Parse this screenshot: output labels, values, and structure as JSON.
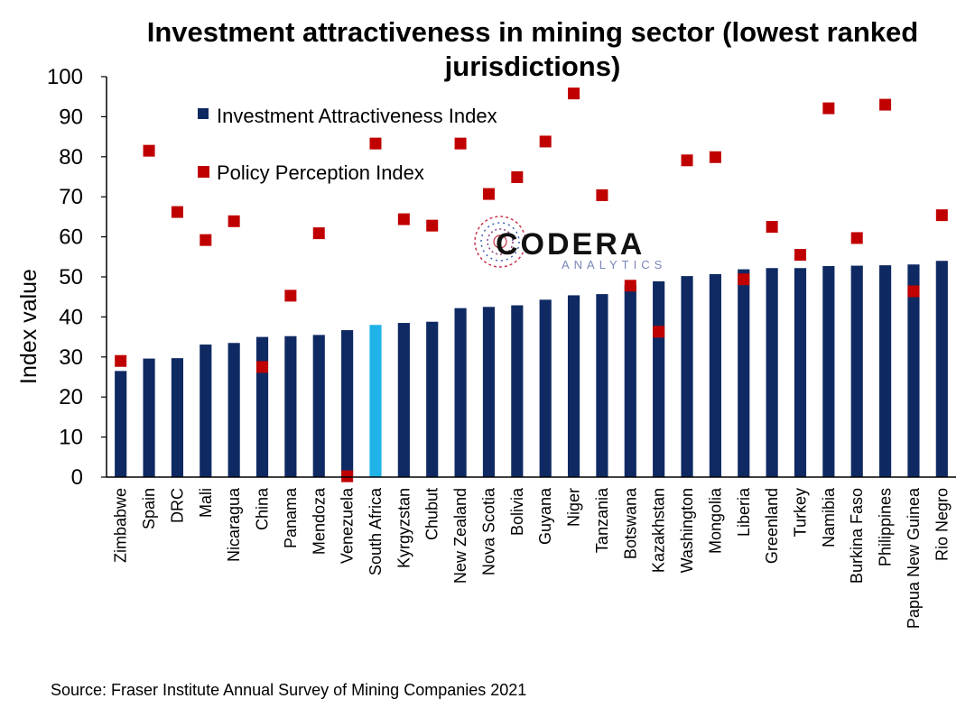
{
  "chart_data": {
    "type": "bar",
    "title_line1": "Investment attractiveness in mining sector (lowest ranked",
    "title_line2": "jurisdictions)",
    "ylabel": "Index value",
    "xlabel": "",
    "ylim": [
      0,
      100
    ],
    "yticks": [
      "0",
      "10",
      "20",
      "30",
      "40",
      "50",
      "60",
      "70",
      "80",
      "90",
      "100"
    ],
    "categories": [
      "Zimbabwe",
      "Spain",
      "DRC",
      "Mali",
      "Nicaragua",
      "China",
      "Panama",
      "Mendoza",
      "Venezuela",
      "South Africa",
      "Kyrgyzstan",
      "Chubut",
      "New Zealand",
      "Nova Scotia",
      "Bolivia",
      "Guyana",
      "Niger",
      "Tanzania",
      "Botswana",
      "Kazakhstan",
      "Washington",
      "Mongolia",
      "Liberia",
      "Greenland",
      "Turkey",
      "Namibia",
      "Burkina Faso",
      "Philippines",
      "Papua New Guinea",
      "Rio Negro"
    ],
    "highlight_category": "South Africa",
    "series": [
      {
        "name": "Investment Attractiveness Index",
        "type": "bar",
        "color": "#0f2a63",
        "highlight_color": "#1fb3e8",
        "values": [
          26.5,
          29.6,
          29.7,
          33.1,
          33.5,
          35.0,
          35.2,
          35.5,
          36.7,
          38.0,
          38.5,
          38.8,
          42.2,
          42.5,
          42.9,
          44.3,
          45.4,
          45.7,
          48.0,
          48.9,
          50.2,
          50.7,
          51.9,
          52.2,
          52.2,
          52.7,
          52.8,
          52.9,
          53.1,
          54.0
        ]
      },
      {
        "name": "Policy Perception Index",
        "type": "marker",
        "color": "#c00000",
        "values": [
          29.0,
          81.5,
          66.2,
          59.2,
          63.9,
          27.5,
          45.3,
          60.9,
          0.2,
          83.3,
          64.4,
          62.8,
          83.3,
          70.7,
          74.9,
          83.8,
          95.8,
          70.4,
          47.8,
          36.3,
          79.1,
          79.9,
          49.4,
          62.5,
          55.5,
          92.1,
          59.7,
          93.0,
          46.4,
          65.4
        ]
      }
    ],
    "legend_position": "top-left",
    "grid": false
  },
  "logo": {
    "name": "CODERA",
    "subtitle": "ANALYTICS"
  },
  "source_note": "Source: Fraser Institute Annual Survey of Mining Companies 2021"
}
